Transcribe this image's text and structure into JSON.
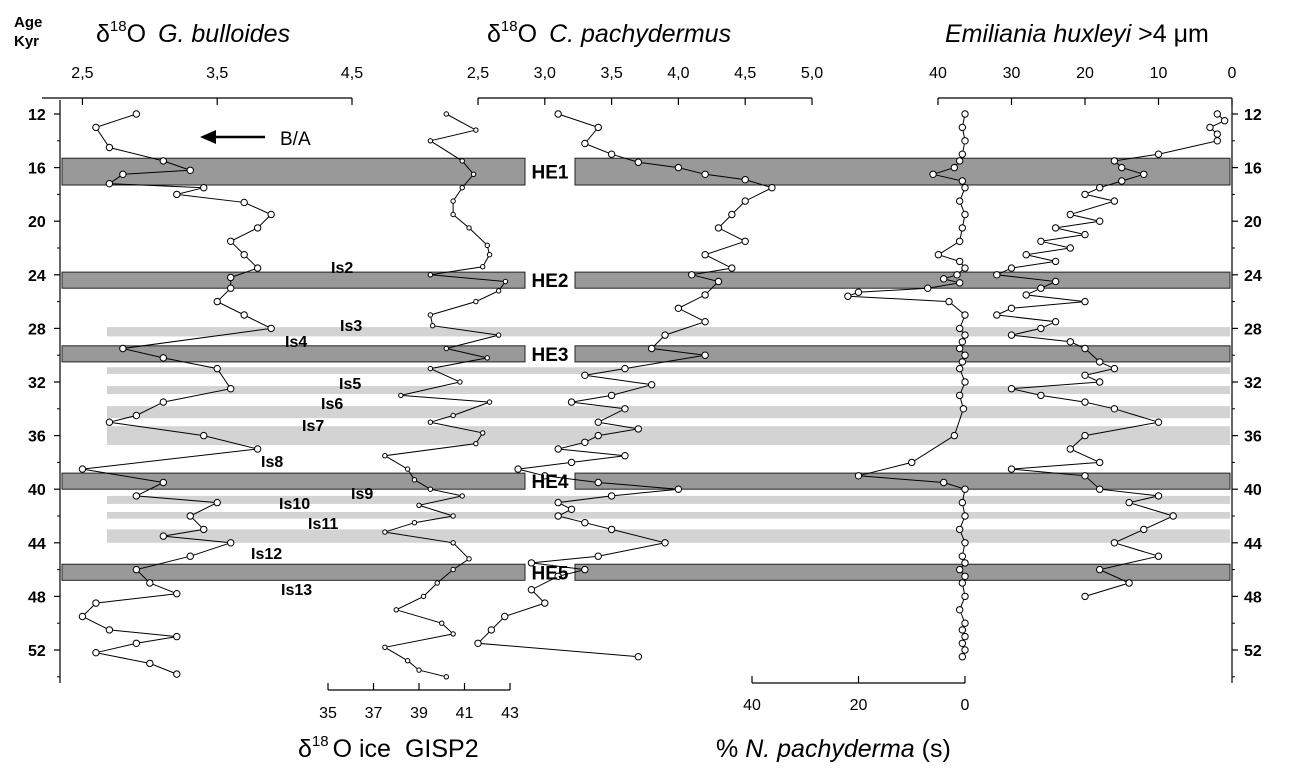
{
  "chart_data": {
    "type": "line",
    "age_header": [
      "Age",
      "Kyr"
    ],
    "age_axis": {
      "ticks": [
        "12",
        "16",
        "20",
        "24",
        "28",
        "32",
        "36",
        "40",
        "44",
        "48",
        "52"
      ],
      "range": [
        11,
        55
      ]
    },
    "panels": {
      "bulloides": {
        "title": "G. bulloides",
        "delta_o": "O",
        "sup": "18",
        "ticks": [
          "2,5",
          "3,5",
          "4,5"
        ],
        "range": [
          2.2,
          4.5
        ],
        "annotation": "B/A",
        "is_labels": [
          "Is2",
          "Is4",
          "Is8",
          "Is10",
          "Is12",
          "Is13"
        ]
      },
      "gisp2": {
        "label_o": "O ice",
        "label_site": "GISP2",
        "sup": "18",
        "ticks": [
          "35",
          "37",
          "39",
          "41",
          "43"
        ],
        "range": [
          35,
          43
        ],
        "is_labels": [
          "Is3",
          "Is5",
          "Is6",
          "Is7",
          "Is9",
          "Is11"
        ]
      },
      "pachydermus": {
        "title": "C. pachydermus",
        "delta_o": "O",
        "sup": "18",
        "ticks": [
          "2,5",
          "3,0",
          "3,5",
          "4,0",
          "4,5",
          "5,0"
        ],
        "range": [
          2.5,
          5.0
        ]
      },
      "npach": {
        "label_pre": "% ",
        "label_species": "N. pachyderma",
        "label_post": " (s)",
        "ticks": [
          "40",
          "20",
          "0"
        ],
        "range": [
          40,
          0
        ]
      },
      "ehux": {
        "title_species": "Emiliania huxleyi",
        "title_post": " >4 ",
        "title_unit": "μm",
        "ticks": [
          "40",
          "30",
          "20",
          "10",
          "0"
        ],
        "range": [
          40,
          0
        ]
      }
    },
    "heinrich_events": [
      {
        "label": "HE1",
        "from": 15.3,
        "to": 17.3
      },
      {
        "label": "HE2",
        "from": 23.8,
        "to": 25.0
      },
      {
        "label": "HE3",
        "from": 29.3,
        "to": 30.5
      },
      {
        "label": "HE4",
        "from": 38.8,
        "to": 40.0
      },
      {
        "label": "HE5",
        "from": 45.6,
        "to": 46.8
      }
    ],
    "interstadials": [
      {
        "from": 27.9,
        "to": 28.6
      },
      {
        "from": 30.9,
        "to": 31.4
      },
      {
        "from": 32.3,
        "to": 32.9
      },
      {
        "from": 33.8,
        "to": 34.7
      },
      {
        "from": 35.3,
        "to": 36.7
      },
      {
        "from": 40.5,
        "to": 41.1
      },
      {
        "from": 41.7,
        "to": 42.2
      },
      {
        "from": 43.0,
        "to": 44.0
      }
    ],
    "series": [
      {
        "key": "bulloides",
        "x": [
          2.9,
          2.6,
          2.7,
          3.1,
          3.3,
          2.8,
          2.7,
          3.4,
          3.2,
          3.7,
          3.9,
          3.8,
          3.6,
          3.7,
          3.8,
          3.6,
          3.6,
          3.5,
          3.7,
          3.9,
          2.8,
          3.1,
          3.5,
          3.6,
          3.1,
          2.9,
          2.7,
          3.4,
          3.8,
          2.5,
          3.1,
          2.9,
          3.5,
          3.3,
          3.4,
          3.1,
          3.6,
          3.3,
          2.9,
          3.0,
          3.2,
          2.6,
          2.5,
          2.7,
          3.2,
          2.9,
          2.6,
          3.0,
          3.2
        ],
        "y": [
          12.0,
          13.0,
          14.5,
          15.5,
          16.2,
          16.5,
          17.2,
          17.5,
          18.0,
          18.6,
          19.5,
          20.5,
          21.5,
          22.5,
          23.5,
          24.2,
          25.0,
          26.0,
          27.0,
          28.0,
          29.5,
          30.2,
          31.0,
          32.5,
          33.5,
          34.5,
          35.0,
          36.0,
          37.0,
          38.5,
          39.5,
          40.5,
          41.0,
          42.0,
          43.0,
          43.5,
          44.0,
          45.0,
          46.0,
          47.0,
          47.8,
          48.5,
          49.5,
          50.5,
          51.0,
          51.5,
          52.2,
          53.0,
          53.8
        ]
      },
      {
        "key": "gisp2",
        "x": [
          40.2,
          41.5,
          39.5,
          40.9,
          41.4,
          40.9,
          40.5,
          40.5,
          41.2,
          42.0,
          42.1,
          41.8,
          39.5,
          42.8,
          42.5,
          41.5,
          39.5,
          39.6,
          42.5,
          40.2,
          42.0,
          39.5,
          40.8,
          38.2,
          42.1,
          40.5,
          39.5,
          41.8,
          41.5,
          37.5,
          38.5,
          38.8,
          39.5,
          40.9,
          39.0,
          40.5,
          38.8,
          37.5,
          40.5,
          41.2,
          40.5,
          39.8,
          39.2,
          38.0,
          40.0,
          40.5,
          37.5,
          38.5,
          39.0,
          40.2
        ],
        "y": [
          12.0,
          13.2,
          14.0,
          15.5,
          16.5,
          17.5,
          18.5,
          19.5,
          20.5,
          21.8,
          22.5,
          23.4,
          24.0,
          24.5,
          25.2,
          26.0,
          27.0,
          27.8,
          28.5,
          29.5,
          30.2,
          31.0,
          32.0,
          33.0,
          33.5,
          34.5,
          35.0,
          35.8,
          36.6,
          37.5,
          38.5,
          39.3,
          40.0,
          40.5,
          41.2,
          42.0,
          42.5,
          43.2,
          44.0,
          45.2,
          46.0,
          47.0,
          48.0,
          49.0,
          50.0,
          50.8,
          51.8,
          52.8,
          53.5,
          54.0
        ]
      },
      {
        "key": "pachydermus",
        "x": [
          3.1,
          3.4,
          3.3,
          3.5,
          3.7,
          4.0,
          4.2,
          4.5,
          4.7,
          4.5,
          4.4,
          4.3,
          4.5,
          4.2,
          4.4,
          4.1,
          4.3,
          4.2,
          4.0,
          4.2,
          3.9,
          3.8,
          4.2,
          3.6,
          3.3,
          3.8,
          3.5,
          3.2,
          3.6,
          3.4,
          3.7,
          3.4,
          3.3,
          3.1,
          3.6,
          3.2,
          2.8,
          3.0,
          3.4,
          4.0,
          3.5,
          3.1,
          3.2,
          3.1,
          3.3,
          3.5,
          3.9,
          3.4,
          2.9,
          3.3,
          3.1,
          2.9,
          3.0,
          2.7,
          2.6,
          2.5,
          3.7
        ],
        "y": [
          12.0,
          13.0,
          14.2,
          15.0,
          15.6,
          16.0,
          16.5,
          16.9,
          17.5,
          18.5,
          19.5,
          20.5,
          21.5,
          22.5,
          23.5,
          24.0,
          24.5,
          25.5,
          26.5,
          27.5,
          28.5,
          29.5,
          30.0,
          31.0,
          31.5,
          32.2,
          33.0,
          33.5,
          34.0,
          35.0,
          35.5,
          36.0,
          36.5,
          37.0,
          37.5,
          38.0,
          38.5,
          39.0,
          39.5,
          40.0,
          40.5,
          41.0,
          41.5,
          42.0,
          42.5,
          43.0,
          44.0,
          45.0,
          45.5,
          46.0,
          46.5,
          47.5,
          48.5,
          49.5,
          50.5,
          51.5,
          52.5
        ]
      },
      {
        "key": "npach",
        "x": [
          0,
          0.5,
          0,
          0.5,
          1,
          2,
          6,
          0.5,
          0,
          1,
          0,
          0.5,
          1,
          5,
          1,
          0,
          1.5,
          4,
          1,
          7,
          20,
          22,
          3,
          0,
          1,
          0,
          0.5,
          1,
          0,
          0.5,
          1,
          0,
          1,
          0.3,
          2,
          10,
          20,
          4,
          0,
          0.5,
          0,
          1,
          0,
          0.5,
          0,
          1,
          0,
          0.5,
          0,
          1,
          0,
          0.5,
          0,
          0.5,
          0,
          0.5
        ],
        "y": [
          12.0,
          13.0,
          14.0,
          15.0,
          15.5,
          16.0,
          16.5,
          17.0,
          17.5,
          18.5,
          19.5,
          20.5,
          21.5,
          22.5,
          23.0,
          23.5,
          24.0,
          24.3,
          24.6,
          25.0,
          25.3,
          25.6,
          26.0,
          27.0,
          28.0,
          28.5,
          29.0,
          29.5,
          30.0,
          30.5,
          31.0,
          32.0,
          33.0,
          34.0,
          36.0,
          38.0,
          39.0,
          39.5,
          40.0,
          41.0,
          42.0,
          43.0,
          44.0,
          45.0,
          45.5,
          46.0,
          46.5,
          47.0,
          48.0,
          49.0,
          50.0,
          50.5,
          51.0,
          51.5,
          52.0,
          52.5
        ]
      },
      {
        "key": "ehux",
        "x": [
          2,
          1,
          3,
          2,
          2,
          10,
          16,
          15,
          12,
          15,
          18,
          20,
          16,
          22,
          18,
          24,
          20,
          26,
          22,
          28,
          24,
          30,
          32,
          24,
          26,
          28,
          20,
          30,
          32,
          24,
          26,
          30,
          22,
          20,
          18,
          16,
          20,
          18,
          30,
          26,
          20,
          16,
          10,
          20,
          22,
          18,
          30,
          20,
          18,
          10,
          14,
          8,
          12,
          16,
          10,
          18,
          14,
          20
        ],
        "y": [
          12.0,
          12.5,
          13.0,
          13.5,
          14.0,
          15.0,
          15.5,
          16.0,
          16.5,
          17.0,
          17.5,
          18.0,
          18.5,
          19.5,
          20.0,
          20.5,
          21.0,
          21.5,
          22.0,
          22.5,
          23.0,
          23.5,
          24.0,
          24.5,
          25.0,
          25.5,
          26.0,
          26.5,
          27.0,
          27.5,
          28.0,
          28.5,
          29.0,
          29.5,
          30.5,
          31.0,
          31.5,
          32.0,
          32.5,
          33.0,
          33.5,
          34.0,
          35.0,
          36.0,
          37.0,
          38.0,
          38.5,
          39.0,
          40.0,
          40.5,
          41.0,
          42.0,
          43.0,
          44.0,
          45.0,
          46.0,
          47.0,
          48.0
        ]
      }
    ]
  }
}
